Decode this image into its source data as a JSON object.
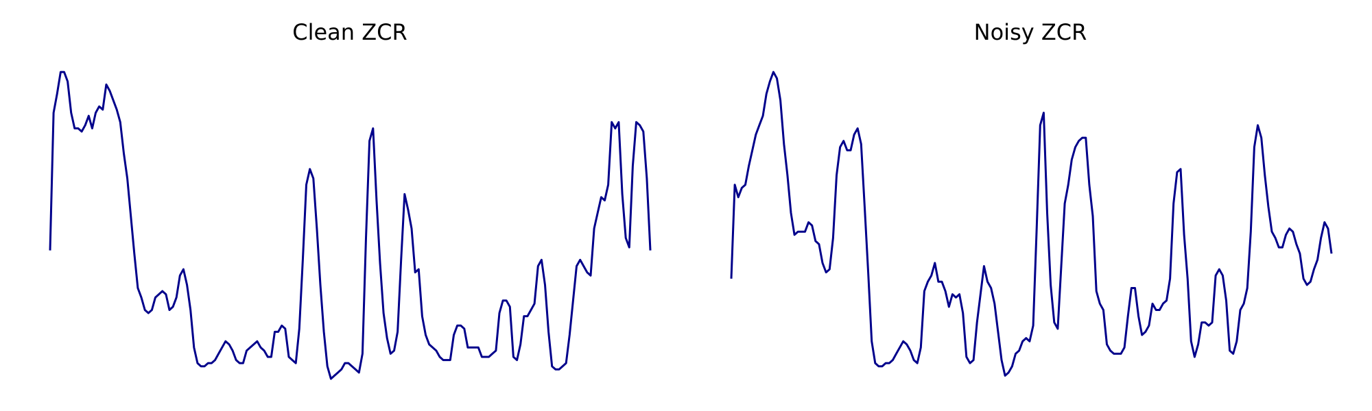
{
  "chart_data": [
    {
      "type": "line",
      "title": "Clean ZCR",
      "xlabel": "",
      "ylabel": "",
      "grid": false,
      "axes_visible": false,
      "ylim": [
        0.0,
        1.0
      ],
      "color": "#00008B",
      "series": [
        {
          "values": [
            0.41,
            0.85,
            0.91,
            0.98,
            0.98,
            0.95,
            0.85,
            0.8,
            0.8,
            0.79,
            0.81,
            0.84,
            0.8,
            0.85,
            0.87,
            0.86,
            0.94,
            0.92,
            0.89,
            0.86,
            0.82,
            0.72,
            0.64,
            0.52,
            0.4,
            0.29,
            0.26,
            0.22,
            0.21,
            0.22,
            0.26,
            0.27,
            0.28,
            0.27,
            0.22,
            0.23,
            0.26,
            0.33,
            0.35,
            0.3,
            0.22,
            0.1,
            0.05,
            0.04,
            0.04,
            0.05,
            0.05,
            0.06,
            0.08,
            0.1,
            0.12,
            0.11,
            0.09,
            0.06,
            0.05,
            0.05,
            0.09,
            0.1,
            0.11,
            0.12,
            0.1,
            0.09,
            0.07,
            0.07,
            0.15,
            0.15,
            0.17,
            0.16,
            0.07,
            0.06,
            0.05,
            0.16,
            0.38,
            0.62,
            0.67,
            0.64,
            0.48,
            0.3,
            0.15,
            0.04,
            0.0,
            0.01,
            0.02,
            0.03,
            0.05,
            0.05,
            0.04,
            0.03,
            0.02,
            0.08,
            0.45,
            0.76,
            0.8,
            0.57,
            0.37,
            0.21,
            0.13,
            0.08,
            0.09,
            0.15,
            0.38,
            0.59,
            0.54,
            0.48,
            0.34,
            0.35,
            0.2,
            0.14,
            0.11,
            0.1,
            0.09,
            0.07,
            0.06,
            0.06,
            0.06,
            0.14,
            0.17,
            0.17,
            0.16,
            0.1,
            0.1,
            0.1,
            0.1,
            0.07,
            0.07,
            0.07,
            0.08,
            0.09,
            0.21,
            0.25,
            0.25,
            0.23,
            0.07,
            0.06,
            0.11,
            0.2,
            0.2,
            0.22,
            0.24,
            0.36,
            0.38,
            0.3,
            0.15,
            0.04,
            0.03,
            0.03,
            0.04,
            0.05,
            0.14,
            0.25,
            0.36,
            0.38,
            0.36,
            0.34,
            0.33,
            0.48,
            0.53,
            0.58,
            0.57,
            0.62,
            0.82,
            0.8,
            0.82,
            0.59,
            0.45,
            0.42,
            0.68,
            0.82,
            0.81,
            0.79,
            0.64,
            0.41
          ]
        }
      ]
    },
    {
      "type": "line",
      "title": "Noisy ZCR",
      "xlabel": "",
      "ylabel": "",
      "grid": false,
      "axes_visible": false,
      "ylim": [
        0.0,
        1.0
      ],
      "color": "#00008B",
      "series": [
        {
          "values": [
            0.32,
            0.62,
            0.58,
            0.61,
            0.62,
            0.68,
            0.73,
            0.78,
            0.81,
            0.84,
            0.91,
            0.95,
            0.98,
            0.96,
            0.89,
            0.75,
            0.65,
            0.53,
            0.46,
            0.47,
            0.47,
            0.47,
            0.5,
            0.49,
            0.44,
            0.43,
            0.37,
            0.34,
            0.35,
            0.45,
            0.65,
            0.74,
            0.76,
            0.73,
            0.73,
            0.78,
            0.8,
            0.75,
            0.55,
            0.34,
            0.12,
            0.05,
            0.04,
            0.04,
            0.05,
            0.05,
            0.06,
            0.08,
            0.1,
            0.12,
            0.11,
            0.09,
            0.06,
            0.05,
            0.1,
            0.28,
            0.31,
            0.33,
            0.37,
            0.31,
            0.31,
            0.28,
            0.23,
            0.27,
            0.26,
            0.27,
            0.21,
            0.07,
            0.05,
            0.06,
            0.18,
            0.27,
            0.36,
            0.31,
            0.29,
            0.24,
            0.15,
            0.06,
            0.01,
            0.02,
            0.04,
            0.08,
            0.09,
            0.12,
            0.13,
            0.12,
            0.17,
            0.48,
            0.81,
            0.85,
            0.53,
            0.3,
            0.18,
            0.16,
            0.36,
            0.56,
            0.62,
            0.7,
            0.74,
            0.76,
            0.77,
            0.77,
            0.62,
            0.52,
            0.28,
            0.24,
            0.22,
            0.11,
            0.09,
            0.08,
            0.08,
            0.08,
            0.1,
            0.2,
            0.29,
            0.29,
            0.2,
            0.14,
            0.15,
            0.17,
            0.24,
            0.22,
            0.22,
            0.24,
            0.25,
            0.32,
            0.56,
            0.66,
            0.67,
            0.46,
            0.32,
            0.12,
            0.07,
            0.11,
            0.18,
            0.18,
            0.17,
            0.18,
            0.33,
            0.35,
            0.33,
            0.25,
            0.09,
            0.08,
            0.12,
            0.22,
            0.24,
            0.29,
            0.47,
            0.74,
            0.81,
            0.77,
            0.65,
            0.55,
            0.47,
            0.45,
            0.42,
            0.42,
            0.46,
            0.48,
            0.47,
            0.43,
            0.4,
            0.32,
            0.3,
            0.31,
            0.35,
            0.38,
            0.45,
            0.5,
            0.48,
            0.4
          ]
        }
      ]
    }
  ]
}
